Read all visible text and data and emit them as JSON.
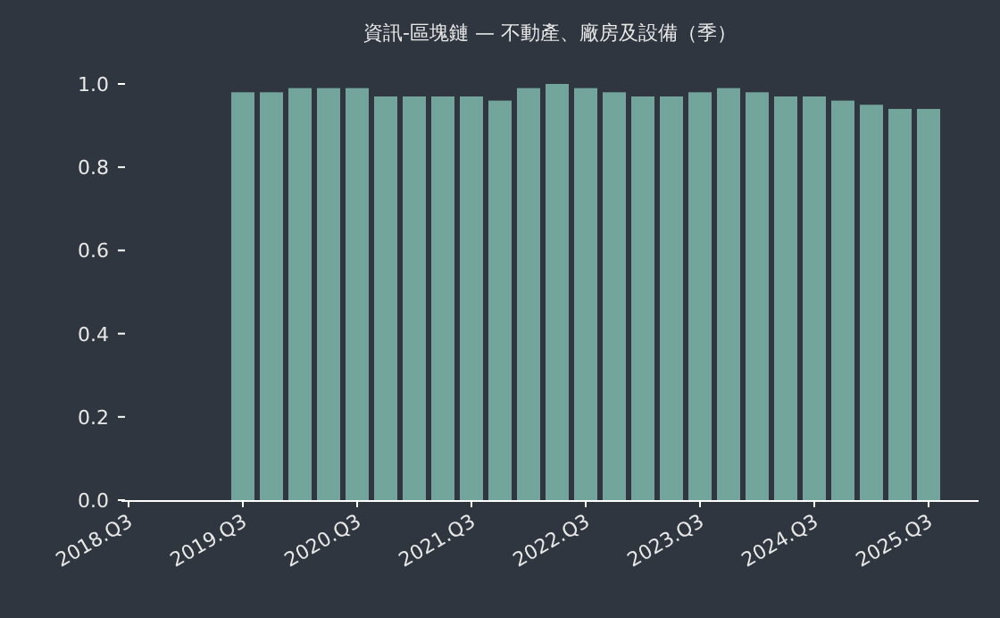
{
  "chart_data": {
    "type": "bar",
    "title": "資訊-區塊鏈 — 不動產、廠房及設備（季）",
    "categories": [
      "2018.Q3",
      null,
      null,
      null,
      "2019.Q3",
      null,
      null,
      null,
      "2020.Q3",
      null,
      null,
      null,
      "2021.Q3",
      null,
      null,
      null,
      "2022.Q3",
      null,
      null,
      null,
      "2023.Q3",
      null,
      null,
      null,
      "2024.Q3",
      null,
      null,
      null,
      "2025.Q3"
    ],
    "values": [
      null,
      null,
      null,
      null,
      0.98,
      0.98,
      0.99,
      0.99,
      0.99,
      0.97,
      0.97,
      0.97,
      0.97,
      0.96,
      0.99,
      1.0,
      0.99,
      0.98,
      0.97,
      0.97,
      0.98,
      0.99,
      0.98,
      0.97,
      0.97,
      0.96,
      0.95,
      0.94,
      0.94
    ],
    "color": "#73a59d",
    "ylim": [
      0,
      1.0
    ],
    "yticks": [
      {
        "value": 0,
        "label": "0.0"
      },
      {
        "value": 0.2,
        "label": "0.2"
      },
      {
        "value": 0.4,
        "label": "0.4"
      },
      {
        "value": 0.6,
        "label": "0.6"
      },
      {
        "value": 0.8,
        "label": "0.8"
      },
      {
        "value": 1,
        "label": "1.0"
      }
    ]
  }
}
